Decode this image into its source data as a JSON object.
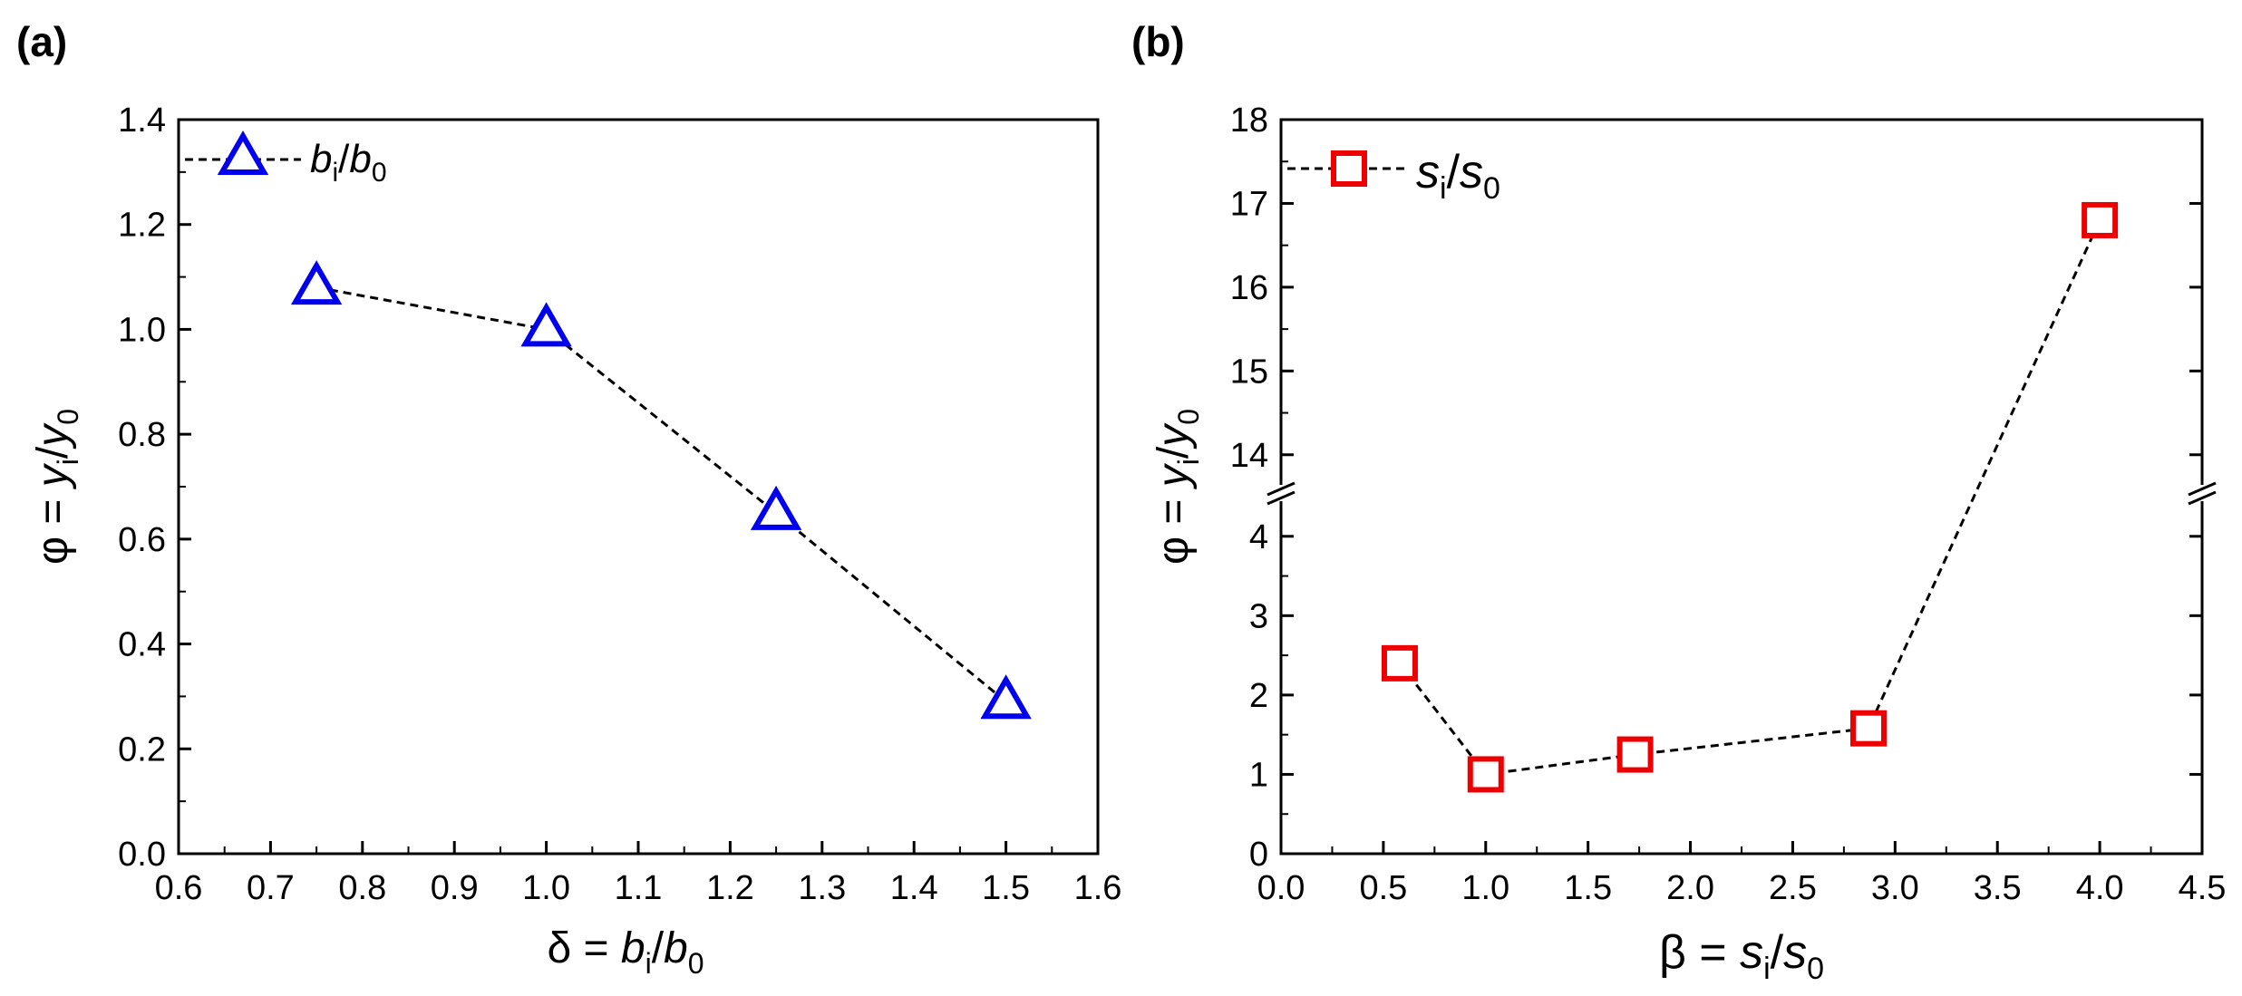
{
  "colors": {
    "series_a": "#0000ee",
    "series_b": "#ee0000",
    "axis": "#000000",
    "line": "#000000"
  },
  "chart_data": [
    {
      "panel": "(a)",
      "type": "line",
      "marker": "triangle",
      "series": [
        {
          "name": "b_i/b_0",
          "legend_base": "b",
          "legend_sub1": "i",
          "legend_sep": "/",
          "legend_base2": "b",
          "legend_sub2": "0",
          "x": [
            0.75,
            1.0,
            1.25,
            1.5
          ],
          "y": [
            1.08,
            1.0,
            0.65,
            0.29
          ]
        }
      ],
      "xlim": [
        0.6,
        1.6
      ],
      "ylim": [
        0.0,
        1.4
      ],
      "xticks": [
        "0.6",
        "0.7",
        "0.8",
        "0.9",
        "1.0",
        "1.1",
        "1.2",
        "1.3",
        "1.4",
        "1.5",
        "1.6"
      ],
      "yticks": [
        "0.0",
        "0.2",
        "0.4",
        "0.6",
        "0.8",
        "1.0",
        "1.2",
        "1.4"
      ],
      "xlabel": {
        "prefix": "δ = ",
        "base": "b",
        "sub1": "i",
        "sep": "/",
        "base2": "b",
        "sub2": "0"
      },
      "ylabel": {
        "prefix": "φ = ",
        "base": "y",
        "sub1": "i",
        "sep": "/",
        "base2": "y",
        "sub2": "0"
      },
      "legend_position": "top-left"
    },
    {
      "panel": "(b)",
      "type": "line",
      "marker": "square",
      "axis_break": {
        "lower": [
          0,
          4.5
        ],
        "upper": [
          13.5,
          18
        ]
      },
      "series": [
        {
          "name": "s_i/s_0",
          "legend_base": "s",
          "legend_sub1": "i",
          "legend_sep": "/",
          "legend_base2": "s",
          "legend_sub2": "0",
          "x": [
            0.58,
            1.0,
            1.73,
            2.87,
            4.0
          ],
          "y": [
            2.4,
            1.0,
            1.25,
            1.58,
            16.8
          ]
        }
      ],
      "xlim": [
        0.0,
        4.5
      ],
      "xticks": [
        "0.0",
        "0.5",
        "1.0",
        "1.5",
        "2.0",
        "2.5",
        "3.0",
        "3.5",
        "4.0",
        "4.5"
      ],
      "yticks_lower": [
        "0",
        "1",
        "2",
        "3",
        "4"
      ],
      "yticks_upper": [
        "14",
        "15",
        "16",
        "17",
        "18"
      ],
      "xlabel": {
        "prefix": "β = ",
        "base": "s",
        "sub1": "i",
        "sep": "/",
        "base2": "s",
        "sub2": "0"
      },
      "ylabel": {
        "prefix": "φ = ",
        "base": "y",
        "sub1": "i",
        "sep": "/",
        "base2": "y",
        "sub2": "0"
      },
      "legend_position": "top-left"
    }
  ]
}
